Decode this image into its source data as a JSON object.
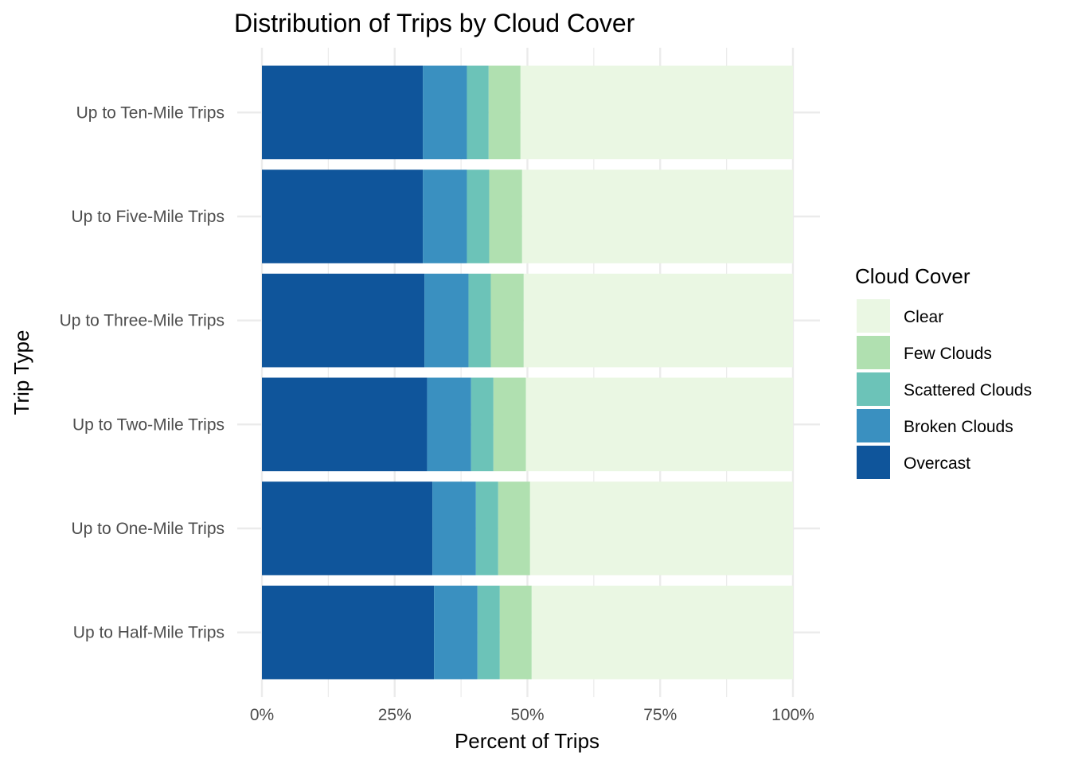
{
  "chart_data": {
    "type": "bar",
    "orientation": "horizontal",
    "stacked": "percent",
    "title": "Distribution of Trips by Cloud Cover",
    "xlabel": "Percent of Trips",
    "ylabel": "Trip Type",
    "xlim": [
      0,
      100
    ],
    "x_ticks": [
      "0%",
      "25%",
      "50%",
      "75%",
      "100%"
    ],
    "grid": true,
    "legend_position": "right",
    "legend_title": "Cloud Cover",
    "categories": [
      "Up to Ten-Mile Trips",
      "Up to Five-Mile Trips",
      "Up to Three-Mile Trips",
      "Up to Two-Mile Trips",
      "Up to One-Mile Trips",
      "Up to Half-Mile Trips"
    ],
    "series": [
      {
        "name": "Overcast",
        "color": "#0f559b",
        "values": [
          30.3,
          30.3,
          30.6,
          31.1,
          32.1,
          32.4
        ]
      },
      {
        "name": "Broken Clouds",
        "color": "#3a90c0",
        "values": [
          8.3,
          8.3,
          8.3,
          8.3,
          8.2,
          8.2
        ]
      },
      {
        "name": "Scattered Clouds",
        "color": "#6cc3b8",
        "values": [
          4.1,
          4.2,
          4.2,
          4.2,
          4.2,
          4.2
        ]
      },
      {
        "name": "Few Clouds",
        "color": "#b0e0b0",
        "values": [
          6.0,
          6.2,
          6.2,
          6.1,
          6.0,
          6.0
        ]
      },
      {
        "name": "Clear",
        "color": "#eaf7e3",
        "values": [
          51.3,
          51.0,
          50.7,
          50.3,
          49.5,
          49.2
        ]
      }
    ],
    "legend_order": [
      "Clear",
      "Few Clouds",
      "Scattered Clouds",
      "Broken Clouds",
      "Overcast"
    ]
  }
}
